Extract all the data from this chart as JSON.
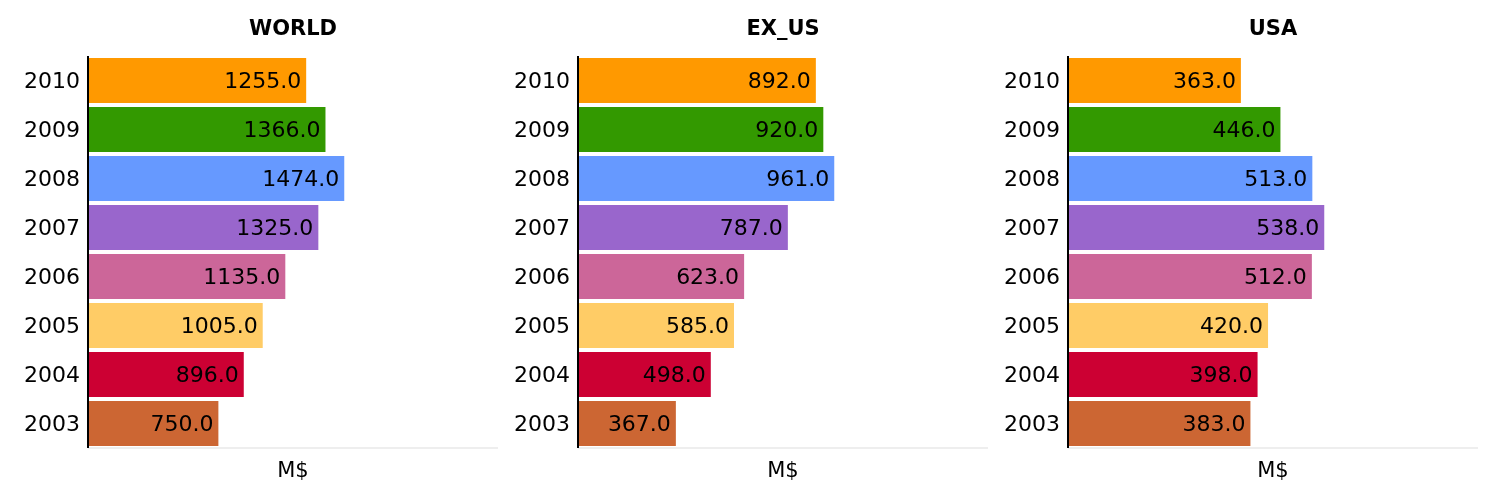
{
  "chart_data": [
    {
      "type": "bar",
      "orientation": "horizontal",
      "title": "WORLD",
      "xlabel": "M$",
      "tick_labels": "y",
      "categories": [
        "2010",
        "2009",
        "2008",
        "2007",
        "2006",
        "2005",
        "2004",
        "2003"
      ],
      "values": [
        1255,
        1366,
        1474,
        1325,
        1135,
        1005,
        896,
        750
      ],
      "value_labels": [
        "1255.0",
        "1366.0",
        "1474.0",
        "1325.0",
        "1135.0",
        "1005.0",
        "896.0",
        "750.0"
      ],
      "colors": [
        "#ff9900",
        "#339900",
        "#6699ff",
        "#9966cc",
        "#cc6699",
        "#ffcc66",
        "#cc0033",
        "#cc6633"
      ]
    },
    {
      "type": "bar",
      "orientation": "horizontal",
      "title": "EX_US",
      "xlabel": "M$",
      "tick_labels": "y",
      "categories": [
        "2010",
        "2009",
        "2008",
        "2007",
        "2006",
        "2005",
        "2004",
        "2003"
      ],
      "values": [
        892,
        920,
        961,
        787,
        623,
        585,
        498,
        367
      ],
      "value_labels": [
        "892.0",
        "920.0",
        "961.0",
        "787.0",
        "623.0",
        "585.0",
        "498.0",
        "367.0"
      ],
      "colors": [
        "#ff9900",
        "#339900",
        "#6699ff",
        "#9966cc",
        "#cc6699",
        "#ffcc66",
        "#cc0033",
        "#cc6633"
      ]
    },
    {
      "type": "bar",
      "orientation": "horizontal",
      "title": "USA",
      "xlabel": "M$",
      "tick_labels": "y",
      "categories": [
        "2010",
        "2009",
        "2008",
        "2007",
        "2006",
        "2005",
        "2004",
        "2003"
      ],
      "values": [
        363,
        446,
        513,
        538,
        512,
        420,
        398,
        383
      ],
      "value_labels": [
        "363.0",
        "446.0",
        "513.0",
        "538.0",
        "512.0",
        "420.0",
        "398.0",
        "383.0"
      ],
      "colors": [
        "#ff9900",
        "#339900",
        "#6699ff",
        "#9966cc",
        "#cc6699",
        "#ffcc66",
        "#cc0033",
        "#cc6633"
      ]
    }
  ]
}
